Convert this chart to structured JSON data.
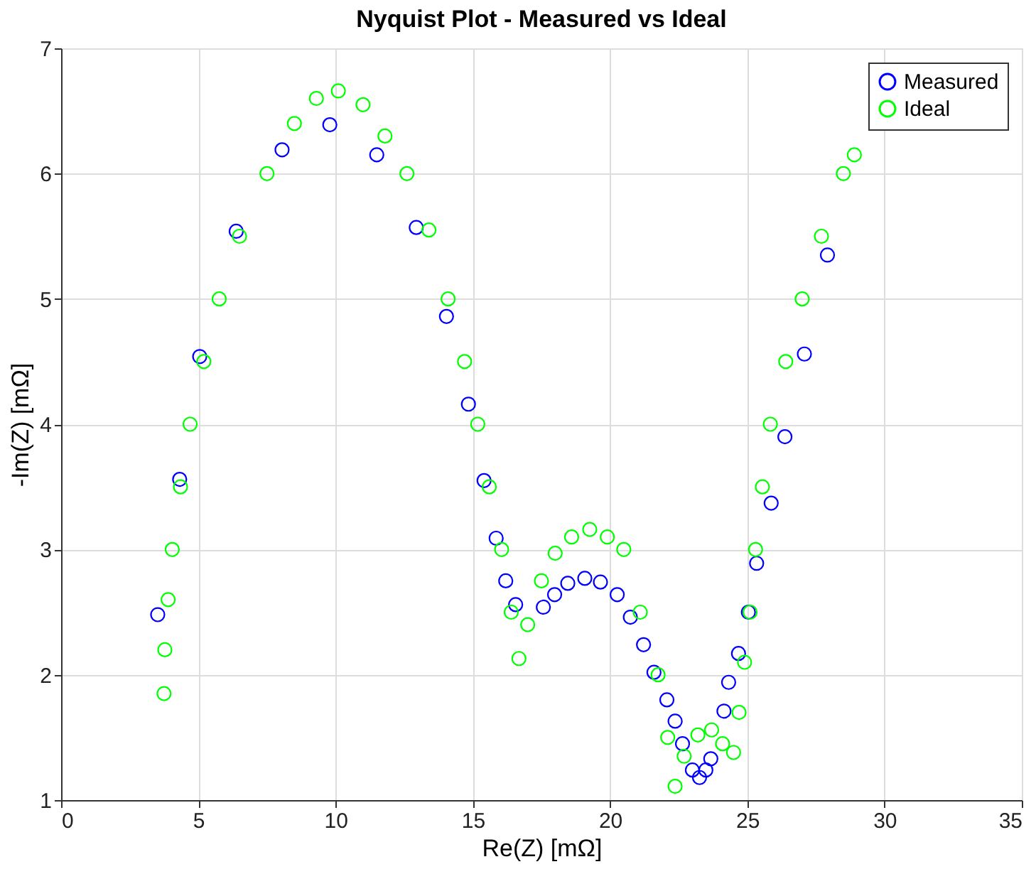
{
  "chart_data": {
    "type": "scatter",
    "title": "Nyquist Plot - Measured vs Ideal",
    "xlabel": "Re(Z) [mΩ]",
    "ylabel": "-Im(Z) [mΩ]",
    "xlim": [
      0,
      35
    ],
    "xticks": [
      0,
      5,
      10,
      15,
      20,
      25,
      30,
      35
    ],
    "ylim": [
      1,
      7
    ],
    "yticks": [
      1,
      2,
      3,
      4,
      5,
      6,
      7
    ],
    "grid": true,
    "legend": "top right",
    "marker": "circle",
    "series": [
      {
        "name": "Measured",
        "color": "#0000ff",
        "x": [
          3.52,
          4.32,
          5.05,
          6.38,
          8.05,
          9.79,
          11.5,
          12.94,
          14.04,
          14.84,
          15.41,
          15.85,
          16.2,
          16.56,
          17.57,
          17.98,
          18.46,
          19.08,
          19.65,
          20.26,
          20.74,
          21.22,
          21.6,
          22.07,
          22.37,
          22.64,
          23.0,
          23.26,
          23.49,
          23.67,
          24.15,
          24.32,
          24.68,
          25.04,
          25.34,
          25.87,
          26.37,
          27.08,
          27.92
        ],
        "values": [
          2.48,
          3.56,
          4.54,
          5.54,
          6.19,
          6.39,
          6.15,
          5.57,
          4.86,
          4.16,
          3.55,
          3.09,
          2.75,
          2.56,
          2.54,
          2.64,
          2.73,
          2.77,
          2.74,
          2.64,
          2.46,
          2.24,
          2.02,
          1.8,
          1.63,
          1.45,
          1.24,
          1.18,
          1.24,
          1.33,
          1.71,
          1.94,
          2.17,
          2.5,
          2.89,
          3.37,
          3.9,
          4.56,
          5.35
        ]
      },
      {
        "name": "Ideal",
        "color": "#00ff00",
        "x": [
          3.75,
          3.78,
          3.9,
          4.05,
          4.35,
          4.7,
          5.2,
          5.76,
          6.5,
          7.5,
          8.5,
          9.3,
          10.1,
          11.0,
          11.8,
          12.6,
          13.4,
          14.1,
          14.7,
          15.18,
          15.6,
          16.05,
          16.4,
          16.68,
          17.0,
          17.5,
          18.0,
          18.6,
          19.26,
          19.9,
          20.5,
          21.1,
          21.75,
          22.1,
          22.37,
          22.7,
          23.2,
          23.7,
          24.1,
          24.5,
          24.7,
          24.9,
          25.1,
          25.3,
          25.55,
          25.84,
          26.4,
          27.0,
          27.7,
          28.5,
          28.9
        ],
        "values": [
          1.85,
          2.2,
          2.6,
          3.0,
          3.5,
          4.0,
          4.5,
          5.0,
          5.5,
          6.0,
          6.4,
          6.6,
          6.66,
          6.55,
          6.3,
          6.0,
          5.55,
          5.0,
          4.5,
          4.0,
          3.5,
          3.0,
          2.5,
          2.13,
          2.4,
          2.75,
          2.97,
          3.1,
          3.16,
          3.1,
          3.0,
          2.5,
          2.0,
          1.5,
          1.11,
          1.35,
          1.52,
          1.56,
          1.45,
          1.38,
          1.7,
          2.1,
          2.5,
          3.0,
          3.5,
          4.0,
          4.5,
          5.0,
          5.5,
          6.0,
          6.15
        ]
      }
    ]
  }
}
